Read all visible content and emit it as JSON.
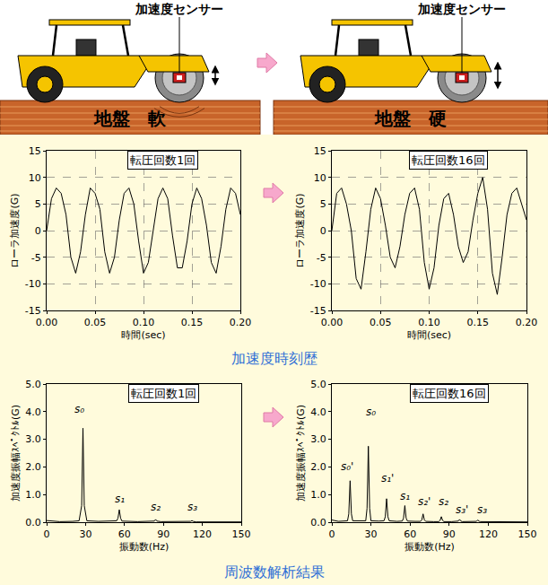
{
  "illustration": {
    "sensor_labels": [
      "加速度センサー",
      "加速度センサー"
    ],
    "ground_labels": [
      "地盤　軟",
      "地盤　硬"
    ]
  },
  "captions": {
    "time_history": "加速度時刻歴",
    "spectrum": "周波数解析結果"
  },
  "chart_data": [
    {
      "type": "line",
      "title": "転圧回数1回",
      "xlabel": "時間(sec)",
      "ylabel": "ローラ加速度(G)",
      "color": "#000000",
      "x": [
        0,
        0.005,
        0.01,
        0.015,
        0.02,
        0.025,
        0.03,
        0.035,
        0.04,
        0.045,
        0.05,
        0.055,
        0.06,
        0.065,
        0.07,
        0.075,
        0.08,
        0.085,
        0.09,
        0.095,
        0.1,
        0.105,
        0.11,
        0.115,
        0.12,
        0.125,
        0.13,
        0.135,
        0.14,
        0.145,
        0.15,
        0.155,
        0.16,
        0.165,
        0.17,
        0.175,
        0.18,
        0.185,
        0.19,
        0.195,
        0.2
      ],
      "values": [
        0,
        6,
        8,
        7,
        3,
        -5,
        -8,
        -4,
        3,
        8,
        7,
        4,
        -4,
        -8,
        -5,
        2,
        7,
        8,
        5,
        -2,
        -8,
        -6,
        0,
        6,
        8,
        6,
        -1,
        -7,
        -7,
        -2,
        5,
        8,
        6,
        1,
        -6,
        -8,
        -3,
        4,
        8,
        7,
        3
      ],
      "xlim": [
        0,
        0.2
      ],
      "xticks": [
        {
          "value": 0,
          "label": "0.00"
        },
        {
          "value": 0.05,
          "label": "0.05"
        },
        {
          "value": 0.1,
          "label": "0.10"
        },
        {
          "value": 0.15,
          "label": "0.15"
        },
        {
          "value": 0.2,
          "label": "0.20"
        }
      ],
      "ylim": [
        -15,
        15
      ],
      "yticks": [
        -15,
        -10,
        -5,
        0,
        5,
        10,
        15
      ],
      "grid": true
    },
    {
      "type": "line",
      "title": "転圧回数16回",
      "xlabel": "時間(sec)",
      "ylabel": "ローラ加速度(G)",
      "color": "#000000",
      "x": [
        0,
        0.005,
        0.01,
        0.015,
        0.02,
        0.025,
        0.03,
        0.035,
        0.04,
        0.045,
        0.05,
        0.055,
        0.06,
        0.065,
        0.07,
        0.075,
        0.08,
        0.085,
        0.09,
        0.095,
        0.1,
        0.105,
        0.11,
        0.115,
        0.12,
        0.125,
        0.13,
        0.135,
        0.14,
        0.145,
        0.15,
        0.155,
        0.16,
        0.165,
        0.17,
        0.175,
        0.18,
        0.185,
        0.19,
        0.195,
        0.2
      ],
      "values": [
        0,
        7,
        8,
        5,
        0,
        -9,
        -11,
        -4,
        4,
        8,
        6,
        1,
        -5,
        -7,
        -3,
        3,
        7,
        8,
        4,
        -6,
        -11,
        -7,
        1,
        6,
        7,
        3,
        -3,
        -6,
        -4,
        2,
        7,
        10,
        4,
        -8,
        -12,
        -5,
        3,
        7,
        8,
        5,
        2
      ],
      "xlim": [
        0,
        0.2
      ],
      "xticks": [
        {
          "value": 0,
          "label": "0.00"
        },
        {
          "value": 0.05,
          "label": "0.05"
        },
        {
          "value": 0.1,
          "label": "0.10"
        },
        {
          "value": 0.15,
          "label": "0.15"
        },
        {
          "value": 0.2,
          "label": "0.20"
        }
      ],
      "ylim": [
        -15,
        15
      ],
      "yticks": [
        -15,
        -10,
        -5,
        0,
        5,
        10,
        15
      ],
      "grid": true
    },
    {
      "type": "line",
      "title": "転圧回数1回",
      "xlabel": "振動数(Hz)",
      "ylabel": "加速度振幅ｽﾍﾟｸﾄﾙ(G)",
      "color": "#000000",
      "x": [
        0,
        5,
        10,
        20,
        25,
        27,
        28,
        29,
        31,
        40,
        50,
        54,
        55,
        56,
        57,
        58,
        70,
        80,
        83,
        84,
        85,
        88,
        100,
        110,
        111,
        112,
        113,
        115,
        130,
        150
      ],
      "values": [
        0.06,
        0.03,
        0.02,
        0.03,
        0.05,
        0.6,
        3.4,
        0.6,
        0.05,
        0.03,
        0.03,
        0.05,
        0.15,
        0.45,
        0.15,
        0.04,
        0.02,
        0.02,
        0.04,
        0.1,
        0.04,
        0.02,
        0.02,
        0.02,
        0.03,
        0.06,
        0.03,
        0.01,
        0.01,
        0.01
      ],
      "xlim": [
        0,
        150
      ],
      "xticks": [
        0,
        30,
        60,
        90,
        120,
        150
      ],
      "ylim": [
        0,
        5
      ],
      "yticks": [
        {
          "value": 0,
          "label": "0.0"
        },
        {
          "value": 1,
          "label": "1.0"
        },
        {
          "value": 2,
          "label": "2.0"
        },
        {
          "value": 3,
          "label": "3.0"
        },
        {
          "value": 4,
          "label": "4.0"
        },
        {
          "value": 5,
          "label": "5.0"
        }
      ],
      "grid": false,
      "annotations": [
        {
          "text": "s₀",
          "x": 25,
          "y": 4.1
        },
        {
          "text": "s₁",
          "x": 56,
          "y": 0.85
        },
        {
          "text": "s₂",
          "x": 84,
          "y": 0.55
        },
        {
          "text": "s₃",
          "x": 112,
          "y": 0.55
        }
      ]
    },
    {
      "type": "line",
      "title": "転圧回数16回",
      "xlabel": "振動数(Hz)",
      "ylabel": "加速度振幅ｽﾍﾟｸﾄﾙ(G)",
      "color": "#000000",
      "x": [
        0,
        5,
        12,
        13,
        14,
        15,
        16,
        22,
        26,
        27,
        28,
        29,
        30,
        36,
        40,
        41,
        42,
        43,
        44,
        50,
        54,
        55,
        56,
        57,
        58,
        64,
        68,
        69,
        70,
        71,
        72,
        78,
        82,
        83,
        84,
        85,
        86,
        92,
        96,
        97,
        98,
        99,
        100,
        106,
        110,
        111,
        112,
        113,
        114,
        125,
        150
      ],
      "values": [
        0.08,
        0.03,
        0.05,
        0.3,
        1.5,
        0.3,
        0.05,
        0.04,
        0.05,
        0.5,
        2.75,
        0.5,
        0.05,
        0.04,
        0.05,
        0.2,
        0.85,
        0.2,
        0.05,
        0.03,
        0.04,
        0.15,
        0.6,
        0.15,
        0.04,
        0.03,
        0.03,
        0.08,
        0.3,
        0.08,
        0.03,
        0.02,
        0.02,
        0.06,
        0.2,
        0.06,
        0.02,
        0.02,
        0.02,
        0.04,
        0.1,
        0.04,
        0.02,
        0.02,
        0.02,
        0.03,
        0.08,
        0.03,
        0.02,
        0.01,
        0.01
      ],
      "xlim": [
        0,
        150
      ],
      "xticks": [
        0,
        30,
        60,
        90,
        120,
        150
      ],
      "ylim": [
        0,
        5
      ],
      "yticks": [
        {
          "value": 0,
          "label": "0.0"
        },
        {
          "value": 1,
          "label": "1.0"
        },
        {
          "value": 2,
          "label": "2.0"
        },
        {
          "value": 3,
          "label": "3.0"
        },
        {
          "value": 4,
          "label": "4.0"
        },
        {
          "value": 5,
          "label": "5.0"
        }
      ],
      "grid": false,
      "annotations": [
        {
          "text": "s₀'",
          "x": 12,
          "y": 2.0
        },
        {
          "text": "s₀",
          "x": 30,
          "y": 4.0
        },
        {
          "text": "s₁'",
          "x": 43,
          "y": 1.6
        },
        {
          "text": "s₁",
          "x": 56,
          "y": 0.95
        },
        {
          "text": "s₂'",
          "x": 71,
          "y": 0.75
        },
        {
          "text": "s₂",
          "x": 86,
          "y": 0.75
        },
        {
          "text": "s₃'",
          "x": 100,
          "y": 0.45
        },
        {
          "text": "s₃",
          "x": 115,
          "y": 0.45
        }
      ]
    }
  ]
}
